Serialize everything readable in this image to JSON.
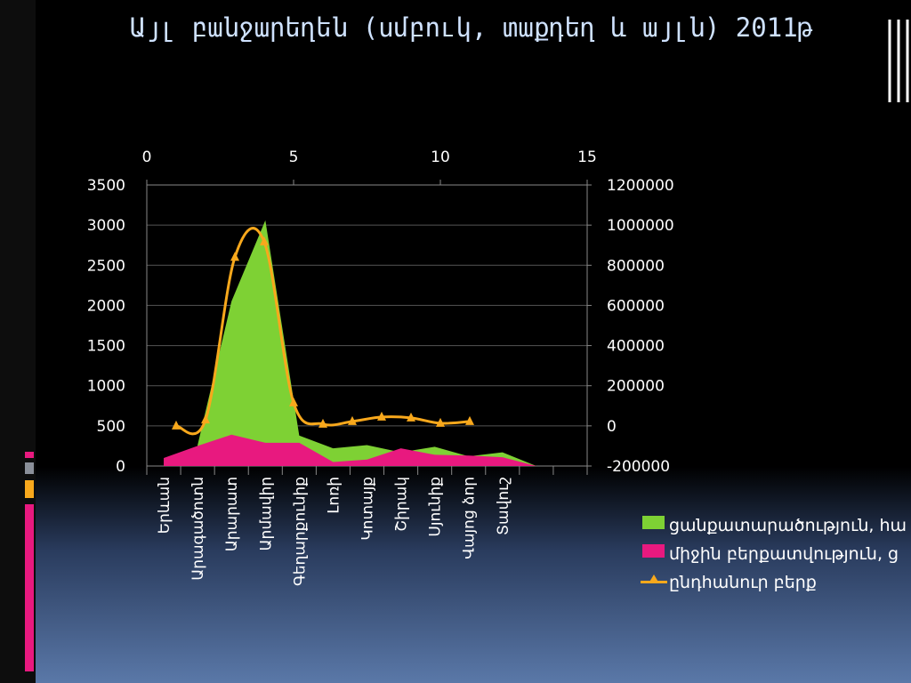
{
  "chart_data": {
    "type": "area-line",
    "title": "Այլ բանջարեղեն (սմբուկ, տաքդեղ և այլն) 2011թ",
    "categories": [
      "Երևան",
      "Արագածոտն",
      "Արարատ",
      "Արմավիր",
      "Գեղարքունիք",
      "Լոռի",
      "Կոտայք",
      "Շիրակ",
      "Սյունիք",
      "Վայոց ձոր",
      "Տավուշ",
      null,
      null
    ],
    "series": [
      {
        "name": "ցանքատարածություն, հա",
        "color": "#7ed134",
        "values": [
          null,
          260,
          2050,
          3060,
          380,
          220,
          260,
          170,
          240,
          120,
          170,
          0,
          null
        ]
      },
      {
        "name": "միջին բերքատվություն, ց",
        "color": "#e8197f",
        "values": [
          100,
          250,
          390,
          290,
          290,
          50,
          80,
          220,
          140,
          130,
          110,
          0,
          null
        ]
      },
      {
        "name": "ընդհանուր բերք",
        "color": "#f8a81c",
        "axis": "y2",
        "x": [
          1,
          2,
          3,
          4,
          5,
          6,
          7,
          8,
          9,
          10,
          11
        ],
        "values": [
          0,
          30000,
          840000,
          917000,
          115000,
          9000,
          22000,
          44000,
          40000,
          13000,
          22000
        ]
      }
    ],
    "ylim": [
      0,
      3500
    ],
    "yticks": [
      0,
      500,
      1000,
      1500,
      2000,
      2500,
      3000,
      3500
    ],
    "y2lim": [
      -200000,
      1200000
    ],
    "y2ticks": [
      -200000,
      0,
      200000,
      400000,
      600000,
      800000,
      1000000,
      1200000
    ],
    "xlim": [
      0,
      15
    ],
    "xticks": [
      0,
      5,
      10,
      15
    ],
    "grid": true
  }
}
